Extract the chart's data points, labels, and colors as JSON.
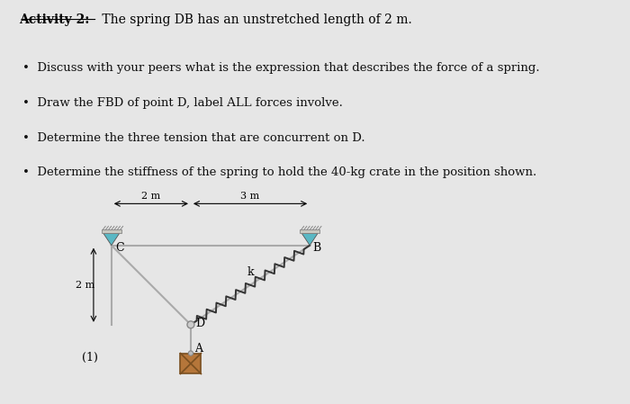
{
  "bg_color": "#e6e6e6",
  "title_text": "Activity 2:",
  "title_suffix": " The spring DB has an unstretched length of 2 m.",
  "bullets": [
    "Discuss with your peers what is the expression that describes the force of a spring.",
    "Draw the FBD of point D, label ALL forces involve.",
    "Determine the three tension that are concurrent on D.",
    "Determine the stiffness of the spring to hold the 40-kg crate in the position shown."
  ],
  "dim_2m_label": "2 m",
  "dim_3m_label": "3 m",
  "dim_left_label": "2 m",
  "label_C": "C",
  "label_B": "B",
  "label_D": "D",
  "label_A": "A",
  "label_k": "k",
  "label_1": "(1)",
  "line_color": "#aaaaaa",
  "spring_color": "#333333",
  "support_teal": "#5ab8c4",
  "support_gray": "#c8c8c0",
  "crate_color": "#b5763a",
  "crate_cross_color": "#7a4f20",
  "crate_edge_color": "#7a4f20",
  "node_color": "#cccccc",
  "node_edge": "#888888",
  "text_color": "#111111",
  "C": [
    0.0,
    0.0
  ],
  "B": [
    5.0,
    0.0
  ],
  "D": [
    2.0,
    -2.0
  ]
}
